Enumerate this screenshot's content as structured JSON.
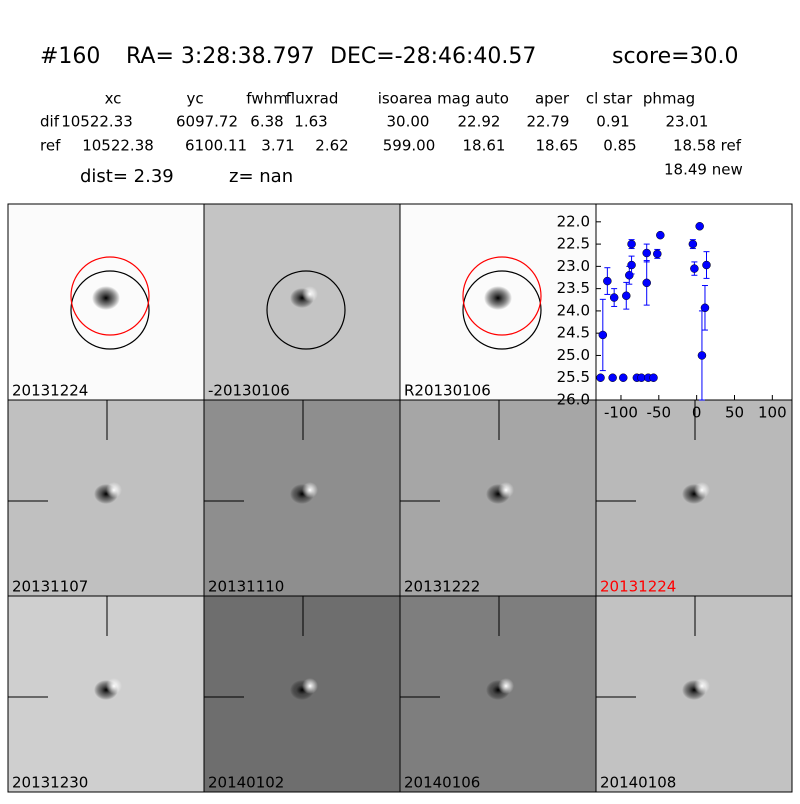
{
  "header": {
    "id": "#160",
    "ra": "RA= 3:28:38.797",
    "dec": "DEC=-28:46:40.57",
    "score": "score=30.0"
  },
  "table": {
    "columns": [
      "xc",
      "yc",
      "fwhm",
      "fluxrad",
      "isoarea",
      "mag auto",
      "aper",
      "cl star",
      "phmag"
    ],
    "rows": [
      {
        "name": "dif",
        "cells": [
          "10522.33",
          "6097.72",
          "6.38",
          "1.63",
          "30.00",
          "22.92",
          "22.79",
          "0.91",
          "23.01"
        ]
      },
      {
        "name": "ref",
        "cells": [
          "10522.38",
          "6100.11",
          "3.71",
          "2.62",
          "599.00",
          "18.61",
          "18.65",
          "0.85",
          "18.58 ref"
        ]
      }
    ],
    "extra": "18.49 new"
  },
  "info": {
    "dist": "dist=  2.39",
    "z": "z=   nan"
  },
  "stamps": [
    {
      "label": "20131224",
      "color": "#000000"
    },
    {
      "label": "-20130106",
      "color": "#000000"
    },
    {
      "label": "R20130106",
      "color": "#000000"
    },
    {
      "label": "20131107",
      "color": "#000000"
    },
    {
      "label": "20131110",
      "color": "#000000"
    },
    {
      "label": "20131222",
      "color": "#000000"
    },
    {
      "label": "20131224",
      "color": "#ff0000"
    },
    {
      "label": "20131230",
      "color": "#000000"
    },
    {
      "label": "20140102",
      "color": "#000000"
    },
    {
      "label": "20140106",
      "color": "#000000"
    },
    {
      "label": "20140108",
      "color": "#000000"
    }
  ],
  "chart_data": {
    "type": "scatter",
    "color": "#0000ff",
    "x": [
      -124,
      -118,
      -109,
      -93,
      -89,
      -86,
      -86,
      -66,
      -66,
      -52,
      -48,
      -5,
      -3,
      4,
      7,
      11,
      13,
      -127,
      -111,
      -97,
      -79,
      -73,
      -64,
      -57
    ],
    "values": [
      24.54,
      23.33,
      23.7,
      23.66,
      23.2,
      22.97,
      22.5,
      22.7,
      23.37,
      22.72,
      22.3,
      22.5,
      23.05,
      22.1,
      25.0,
      23.93,
      22.97,
      25.5,
      25.5,
      25.5,
      25.5,
      25.5,
      25.5,
      25.5
    ],
    "errors": [
      0.8,
      0.3,
      0.2,
      0.3,
      0.2,
      0.2,
      0.1,
      0.2,
      0.5,
      0.1,
      0.05,
      0.1,
      0.15,
      0.05,
      1.0,
      0.5,
      0.3,
      0,
      0,
      0,
      0,
      0,
      0,
      0
    ],
    "xlim": [
      -133,
      126
    ],
    "ylim": [
      26.0,
      21.6
    ],
    "xticks": [
      -100,
      -50,
      0,
      50,
      100
    ],
    "yticks": [
      {
        "value": 22,
        "label": "22.0"
      },
      {
        "value": 22.5,
        "label": "22.5"
      },
      {
        "value": 23,
        "label": "23.0"
      },
      {
        "value": 23.5,
        "label": "23.5"
      },
      {
        "value": 24,
        "label": "24.0"
      },
      {
        "value": 24.5,
        "label": "24.5"
      },
      {
        "value": 25,
        "label": "25.0"
      },
      {
        "value": 25.5,
        "label": "25.5"
      },
      {
        "value": 26,
        "label": "26.0"
      }
    ]
  }
}
